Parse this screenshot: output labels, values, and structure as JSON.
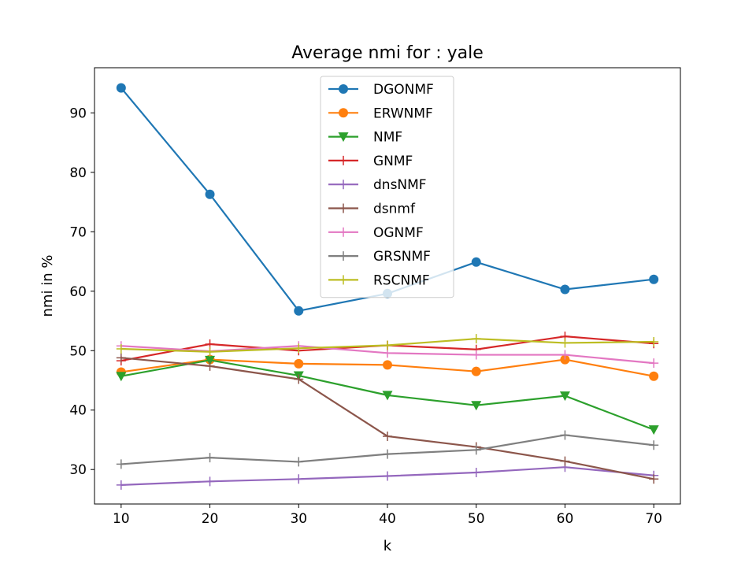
{
  "chart_data": {
    "type": "line",
    "title": "Average nmi for : yale",
    "xlabel": "k",
    "ylabel": "nmi in %",
    "x": [
      10,
      20,
      30,
      40,
      50,
      60,
      70
    ],
    "xlim": [
      7,
      73
    ],
    "ylim": [
      24.2,
      97.6
    ],
    "xticks": [
      10,
      20,
      30,
      40,
      50,
      60,
      70
    ],
    "yticks": [
      30,
      40,
      50,
      60,
      70,
      80,
      90
    ],
    "grid": false,
    "legend_position": "top-center",
    "series": [
      {
        "name": "DGONMF",
        "color": "#1f77b4",
        "marker": "circle",
        "values": [
          94.2,
          76.3,
          56.7,
          59.6,
          64.9,
          60.3,
          62.0
        ]
      },
      {
        "name": "ERWNMF",
        "color": "#ff7f0e",
        "marker": "circle",
        "values": [
          46.4,
          48.5,
          47.8,
          47.6,
          46.5,
          48.5,
          45.7
        ]
      },
      {
        "name": "NMF",
        "color": "#2ca02c",
        "marker": "triangle-down",
        "values": [
          45.7,
          48.4,
          45.8,
          42.5,
          40.8,
          42.4,
          36.7
        ]
      },
      {
        "name": "GNMF",
        "color": "#d62728",
        "marker": "plus",
        "values": [
          48.3,
          51.1,
          50.0,
          50.9,
          50.2,
          52.4,
          51.2
        ]
      },
      {
        "name": "dnsNMF",
        "color": "#9467bd",
        "marker": "plus",
        "values": [
          27.4,
          28.0,
          28.4,
          28.9,
          29.5,
          30.4,
          29.0
        ]
      },
      {
        "name": "dsnmf",
        "color": "#8c564b",
        "marker": "plus",
        "values": [
          48.8,
          47.4,
          45.2,
          35.6,
          33.8,
          31.4,
          28.4
        ]
      },
      {
        "name": "OGNMF",
        "color": "#e377c2",
        "marker": "plus",
        "values": [
          50.8,
          49.9,
          50.8,
          49.6,
          49.3,
          49.3,
          47.9
        ]
      },
      {
        "name": "GRSNMF",
        "color": "#7f7f7f",
        "marker": "plus",
        "values": [
          30.9,
          32.0,
          31.3,
          32.6,
          33.3,
          35.8,
          34.1
        ]
      },
      {
        "name": "RSCNMF",
        "color": "#bcbd22",
        "marker": "plus",
        "values": [
          50.3,
          49.8,
          50.4,
          50.9,
          52.0,
          51.3,
          51.5
        ]
      }
    ]
  }
}
